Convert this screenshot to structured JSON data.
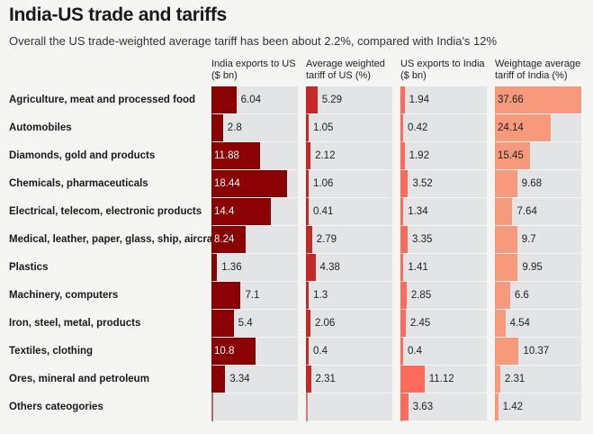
{
  "header": {
    "title": "India-US trade and tariffs",
    "subtitle": "Overall the US trade-weighted average tariff has been about 2.2%, compared with India's 12%"
  },
  "colors": {
    "india_exports": "#8b0000",
    "us_tariff": "#c62828",
    "us_exports": "#ff6a5a",
    "india_tariff": "#f79a7c"
  },
  "chart_data": {
    "type": "bar",
    "title": "India-US trade and tariffs",
    "subtitle": "Overall the US trade-weighted average tariff has been about 2.2%, compared with India's 12%",
    "categories": [
      "Agriculture, meat and processed food",
      "Automobiles",
      "Diamonds, gold and products",
      "Chemicals, pharmaceuticals",
      "Electrical, telecom, electronic products",
      "Medical, leather, paper, glass, ship, aircraft",
      "Plastics",
      "Machinery, computers",
      "Iron, steel, metal, products",
      "Textiles, clothing",
      "Ores, mineral and petroleum",
      "Others cateogories"
    ],
    "series": [
      {
        "name": "India exports to US ($ bn)",
        "values": [
          6.04,
          2.8,
          11.88,
          18.44,
          14.4,
          8.24,
          1.36,
          7.1,
          5.4,
          10.8,
          3.34,
          null
        ],
        "labels": [
          "6.04",
          "2.8",
          "11.88",
          "18.44",
          "14.4",
          "8.24",
          "1.36",
          "7.1",
          "5.4",
          "10.8",
          "3.34",
          ""
        ],
        "max": 21,
        "color": "#8b0000"
      },
      {
        "name": "Average weighted tariff of US (%)",
        "values": [
          5.29,
          1.05,
          2.12,
          1.06,
          0.41,
          2.79,
          4.38,
          1.3,
          2.06,
          0.4,
          2.31,
          null
        ],
        "labels": [
          "5.29",
          "1.05",
          "2.12",
          "1.06",
          "0.41",
          "2.79",
          "4.38",
          "1.3",
          "2.06",
          "0.4",
          "2.31",
          ""
        ],
        "max": 40,
        "color": "#c62828"
      },
      {
        "name": "US exports to India ($ bn)",
        "values": [
          1.94,
          0.42,
          1.92,
          3.52,
          1.34,
          3.35,
          1.41,
          2.85,
          2.45,
          0.4,
          11.12,
          3.63
        ],
        "labels": [
          "1.94",
          "0.42",
          "1.92",
          "3.52",
          "1.34",
          "3.35",
          "1.41",
          "2.85",
          "2.45",
          "0.4",
          "11.12",
          "3.63"
        ],
        "max": 40,
        "color": "#ff6a5a"
      },
      {
        "name": "Weightage average tariff of India (%)",
        "values": [
          37.66,
          24.14,
          15.45,
          9.68,
          7.64,
          9.7,
          9.95,
          6.6,
          4.54,
          10.37,
          2.31,
          1.42
        ],
        "labels": [
          "37.66",
          "24.14",
          "15.45",
          "9.68",
          "7.64",
          "9.7",
          "9.95",
          "6.6",
          "4.54",
          "10.37",
          "2.31",
          "1.42"
        ],
        "max": 37.66,
        "color": "#f79a7c"
      }
    ],
    "column_headers": [
      "India exports to US ($ bn)",
      "Average weighted tariff of US (%)",
      "US exports to India ($ bn)",
      "Weightage average tariff of India (%)"
    ]
  }
}
